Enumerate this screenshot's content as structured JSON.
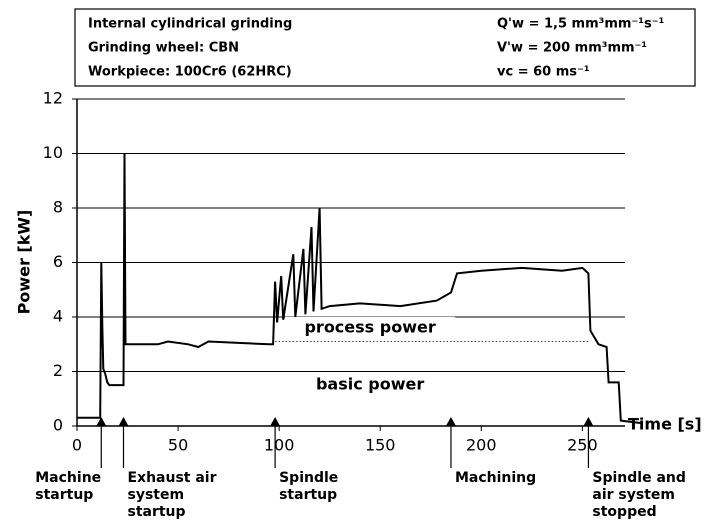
{
  "chart_data": {
    "type": "line",
    "info_box": [
      [
        "Internal cylindrical grinding",
        "Q'w = 1,5 mm³mm⁻¹s⁻¹"
      ],
      [
        "Grinding wheel: CBN",
        "V'w = 200 mm³mm⁻¹"
      ],
      [
        "Workpiece: 100Cr6 (62HRC)",
        "vc = 60 ms⁻¹"
      ]
    ],
    "y_label": "Power [kW]",
    "x_label": "Time [s]",
    "xlim": [
      0,
      280
    ],
    "xticks": [
      0,
      50,
      100,
      150,
      200,
      250
    ],
    "ylim": [
      0,
      12
    ],
    "yticks": [
      0,
      2,
      4,
      6,
      8,
      10,
      12
    ],
    "grid": true,
    "color": "#000000",
    "x": [
      0,
      11.5,
      12,
      12.5,
      13,
      14,
      15,
      16,
      23,
      23.5,
      24,
      40,
      45,
      55,
      60,
      65,
      95,
      97,
      98,
      99,
      101,
      102,
      107,
      108,
      112,
      113,
      116,
      117,
      120,
      121,
      125,
      140,
      160,
      178,
      185,
      188,
      200,
      220,
      240,
      250,
      253,
      254,
      258,
      262,
      263,
      268,
      269,
      280
    ],
    "values": [
      0.3,
      0.3,
      6,
      3.7,
      2.1,
      1.9,
      1.6,
      1.5,
      1.5,
      10,
      3.0,
      3.0,
      3.1,
      3.0,
      2.9,
      3.1,
      3.0,
      3.0,
      5.3,
      3.8,
      5.5,
      3.9,
      6.3,
      4.0,
      6.5,
      4.1,
      7.3,
      4.2,
      8.0,
      4.3,
      4.4,
      4.5,
      4.4,
      4.6,
      4.9,
      5.6,
      5.7,
      5.8,
      5.7,
      5.8,
      5.6,
      3.5,
      3.0,
      2.9,
      1.6,
      1.6,
      0.2,
      0.1
    ],
    "regions": [
      {
        "text": "process power",
        "x": 145,
        "y": 3.6
      },
      {
        "text": "basic power",
        "x": 145,
        "y": 1.5
      }
    ],
    "annotations": [
      {
        "x": 12,
        "lines": [
          "Machine",
          "startup"
        ]
      },
      {
        "x": 23,
        "lines": [
          "Exhaust air",
          "system",
          "startup"
        ]
      },
      {
        "x": 98,
        "lines": [
          "Spindle",
          "startup"
        ]
      },
      {
        "x": 185,
        "lines": [
          "Machining"
        ]
      },
      {
        "x": 253,
        "lines": [
          "Spindle and",
          "air system",
          "stopped"
        ]
      }
    ]
  }
}
